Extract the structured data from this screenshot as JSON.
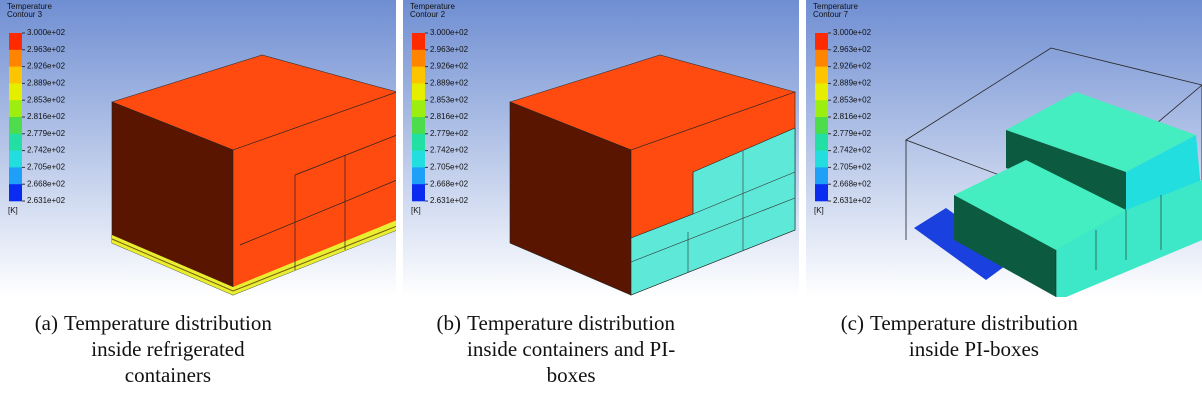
{
  "colorbar": {
    "labels": [
      "3.000e+02",
      "2.963e+02",
      "2.926e+02",
      "2.889e+02",
      "2.853e+02",
      "2.816e+02",
      "2.779e+02",
      "2.742e+02",
      "2.705e+02",
      "2.668e+02",
      "2.631e+02"
    ],
    "unit": "[K]",
    "colors": [
      "#ff2a00",
      "#ff8400",
      "#ffc400",
      "#e6ee00",
      "#9cee10",
      "#4cdc4c",
      "#22e0a4",
      "#22dede",
      "#1fa0f8",
      "#0a2cf0"
    ]
  },
  "panels": [
    {
      "legend_title": [
        "Temperature",
        "Contour 3"
      ],
      "label": "(a)",
      "caption": [
        "Temperature distribution",
        "inside refrigerated",
        "containers"
      ]
    },
    {
      "legend_title": [
        "Temperature",
        "Contour 2"
      ],
      "label": "(b)",
      "caption": [
        "Temperature distribution",
        "inside containers and PI-",
        "boxes"
      ]
    },
    {
      "legend_title": [
        "Temperature",
        "Contour 7"
      ],
      "label": "(c)",
      "caption": [
        "Temperature distribution",
        "inside PI-boxes"
      ]
    }
  ]
}
